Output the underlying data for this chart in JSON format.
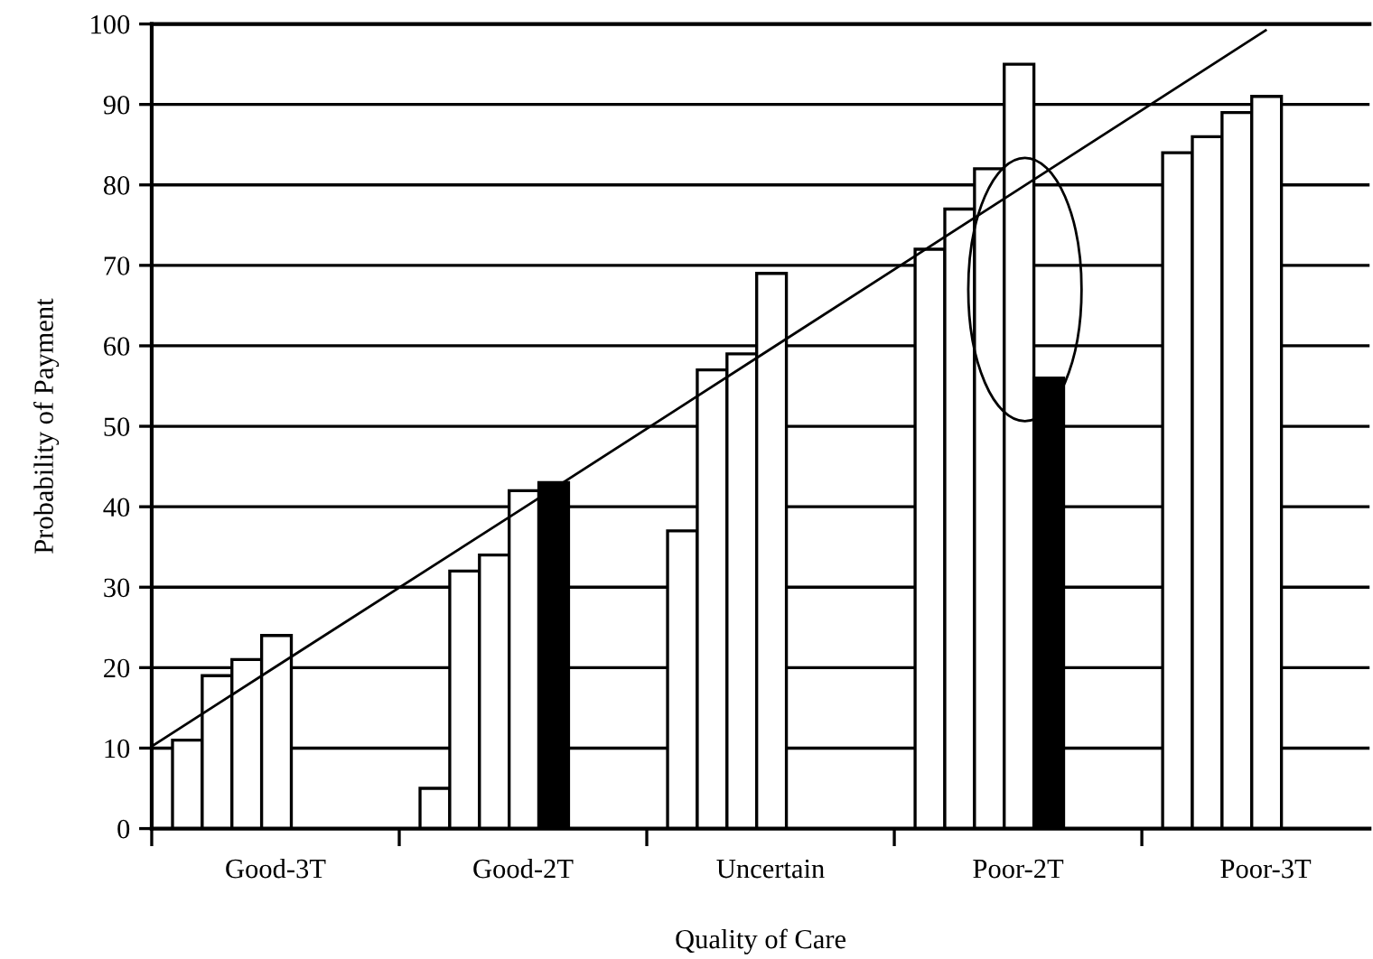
{
  "chart_data": {
    "type": "bar",
    "xlabel": "Quality of Care",
    "ylabel": "Probability of Payment",
    "categories": [
      "Good-3T",
      "Good-2T",
      "Uncertain",
      "Poor-2T",
      "Poor-3T"
    ],
    "series": [
      {
        "color": "#ffffff",
        "values": [
          11,
          5,
          37,
          72,
          84
        ]
      },
      {
        "color": "#ffffff",
        "values": [
          19,
          32,
          57,
          77,
          86
        ]
      },
      {
        "color": "#ffffff",
        "values": [
          21,
          34,
          59,
          82,
          89
        ]
      },
      {
        "color": "#ffffff",
        "values": [
          24,
          42,
          69,
          95,
          91
        ]
      },
      {
        "color": "#000000",
        "values": [
          null,
          43,
          null,
          56,
          null
        ]
      },
      {
        "type": "line",
        "color": "#000000",
        "values": [
          20.1,
          39.8,
          59.6,
          79.4,
          99.2
        ]
      }
    ],
    "ylim": [
      0,
      100
    ],
    "yticks": [
      0,
      10,
      20,
      30,
      40,
      50,
      60,
      70,
      80,
      90,
      100
    ],
    "grid": "y",
    "legend": false
  }
}
